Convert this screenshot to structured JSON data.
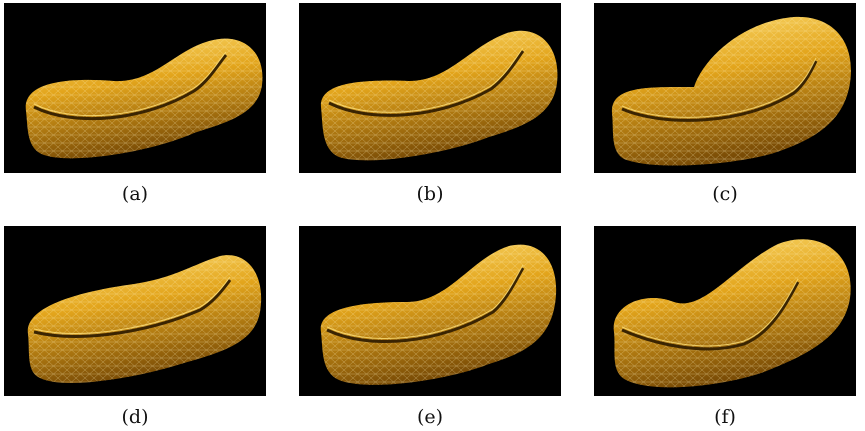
{
  "figure": {
    "panels": [
      {
        "label": "(a)",
        "variant": 0
      },
      {
        "label": "(b)",
        "variant": 1
      },
      {
        "label": "(c)",
        "variant": 2
      },
      {
        "label": "(d)",
        "variant": 3
      },
      {
        "label": "(e)",
        "variant": 4
      },
      {
        "label": "(f)",
        "variant": 5
      }
    ],
    "colors": {
      "background": "#000000",
      "surface_light": "#ffe27a",
      "surface_mid": "#e3a51c",
      "surface_dark": "#7a4c06",
      "mesh": "#fff3c0",
      "caption_text": "#111111"
    }
  }
}
